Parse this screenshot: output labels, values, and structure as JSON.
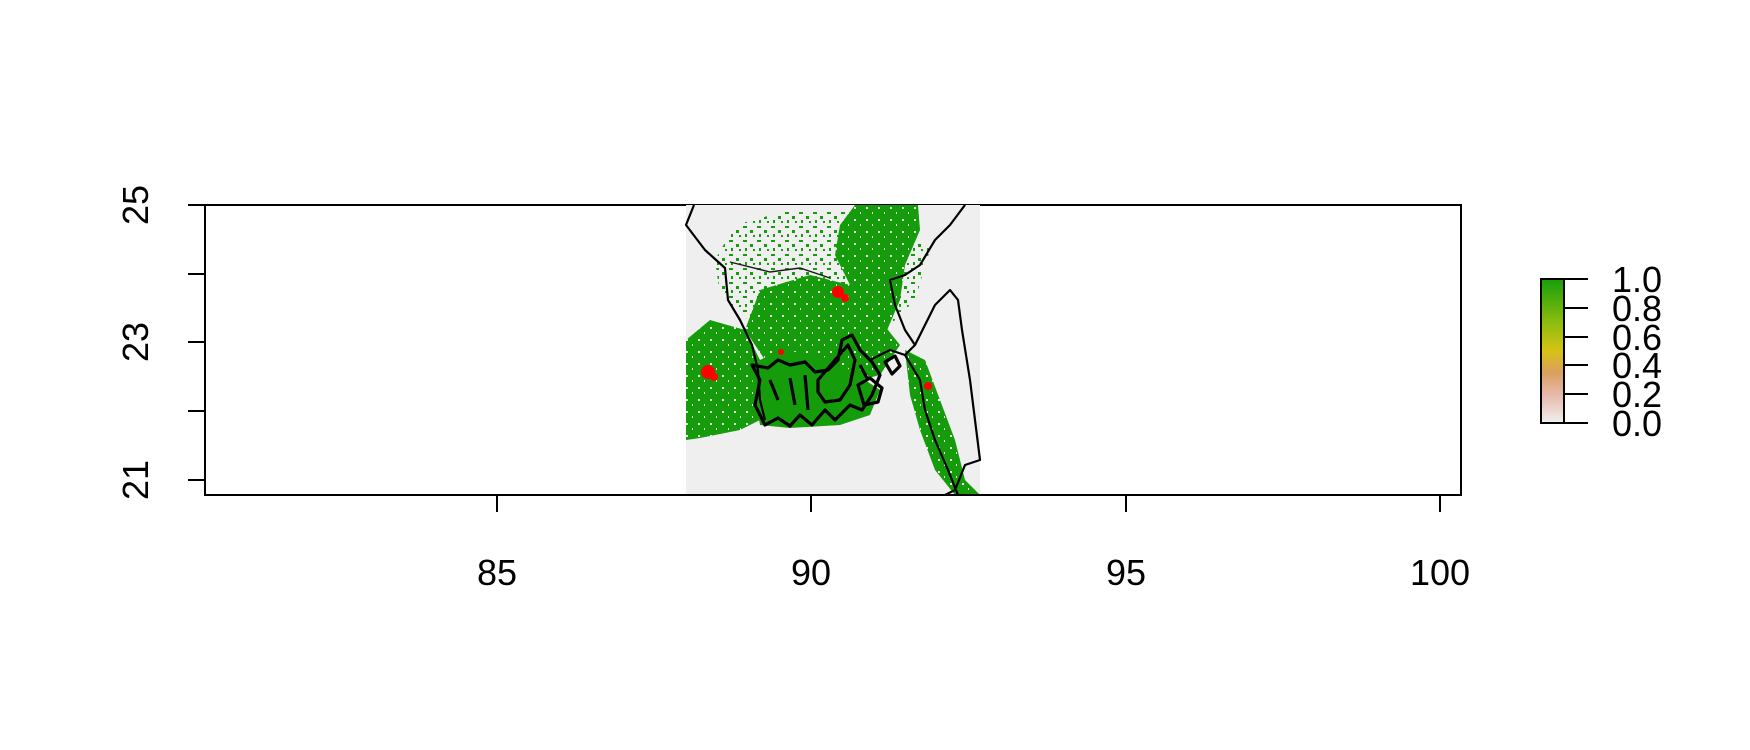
{
  "chart_data": {
    "type": "heatmap",
    "title": "",
    "xlabel": "",
    "ylabel": "",
    "xlim": [
      80.3,
      100.3
    ],
    "ylim": [
      20.55,
      25.0
    ],
    "x_ticks": [
      85,
      90,
      95,
      100
    ],
    "y_ticks": [
      21,
      22,
      23,
      24,
      25
    ],
    "x_tick_labels": [
      "85",
      "90",
      "95",
      "100"
    ],
    "y_tick_labels": [
      "21",
      "23",
      "25"
    ],
    "raster_extent": {
      "xmin": 88.0,
      "xmax": 92.7,
      "ymin": 20.55,
      "ymax": 25.0
    },
    "legend": {
      "placement": "right",
      "range": [
        0.0,
        1.0
      ],
      "tick_values": [
        0.0,
        0.2,
        0.4,
        0.6,
        0.8,
        1.0
      ],
      "tick_labels": [
        "0.0",
        "0.2",
        "0.4",
        "0.6",
        "0.8",
        "1.0"
      ],
      "colors": [
        "#f0f0f0",
        "#e6b8a8",
        "#d9a060",
        "#d8c214",
        "#8bbd0e",
        "#169e0a"
      ]
    },
    "colors": {
      "background_cell": "#efefef",
      "high_value": "#159c0b",
      "hotspot": "#ff0000",
      "outline": "#000000"
    },
    "hotspots": [
      {
        "x": 90.45,
        "y": 23.75
      },
      {
        "x": 88.3,
        "y": 22.55
      },
      {
        "x": 91.8,
        "y": 22.35
      },
      {
        "x": 89.45,
        "y": 22.85
      }
    ]
  }
}
